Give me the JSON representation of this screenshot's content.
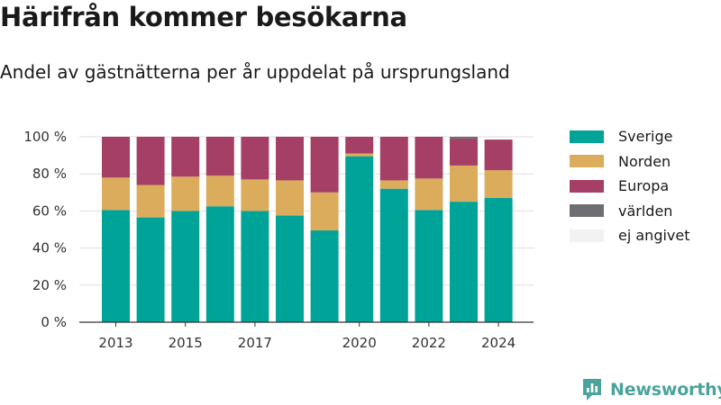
{
  "title": "Härifrån kommer besökarna",
  "subtitle": "Andel av gästnätterna per år uppdelat på ursprungsland",
  "brand": "Newsworthy",
  "chart_data": {
    "type": "bar",
    "stacked": true,
    "categories": [
      "2013",
      "2014",
      "2015",
      "2016",
      "2017",
      "2018",
      "2019",
      "2020",
      "2021",
      "2022",
      "2023",
      "2024"
    ],
    "x_tick_labels": [
      "2013",
      "2015",
      "2017",
      "2020",
      "2022",
      "2024"
    ],
    "y_tick_labels": [
      "0 %",
      "20 %",
      "40 %",
      "60 %",
      "80 %",
      "100 %"
    ],
    "ylim": [
      0,
      100
    ],
    "y_ticks": [
      0,
      20,
      40,
      60,
      80,
      100
    ],
    "grid": true,
    "legend_position": "right",
    "series": [
      {
        "name": "Sverige",
        "color": "#00a398",
        "values": [
          60.5,
          56.5,
          60,
          62.5,
          60,
          57.5,
          49.5,
          89.5,
          72,
          60.5,
          65,
          67
        ]
      },
      {
        "name": "Norden",
        "color": "#dbac5c",
        "values": [
          17.5,
          17.5,
          18.5,
          16.5,
          17,
          19,
          20.5,
          1.5,
          4.5,
          17,
          19.5,
          15
        ]
      },
      {
        "name": "Europa",
        "color": "#a63f66",
        "values": [
          22,
          26,
          21.5,
          21,
          23,
          23.5,
          30,
          9,
          23.5,
          22.5,
          14.5,
          16.5
        ]
      },
      {
        "name": "världen",
        "color": "#6e6e73",
        "values": [
          0,
          0,
          0,
          0,
          0,
          0,
          0,
          0,
          0,
          0,
          1,
          0
        ]
      },
      {
        "name": "ej angivet",
        "color": "#f2f2f2",
        "values": [
          0,
          0,
          0,
          0,
          0,
          0,
          0,
          0,
          0,
          0,
          0,
          0
        ]
      }
    ]
  }
}
